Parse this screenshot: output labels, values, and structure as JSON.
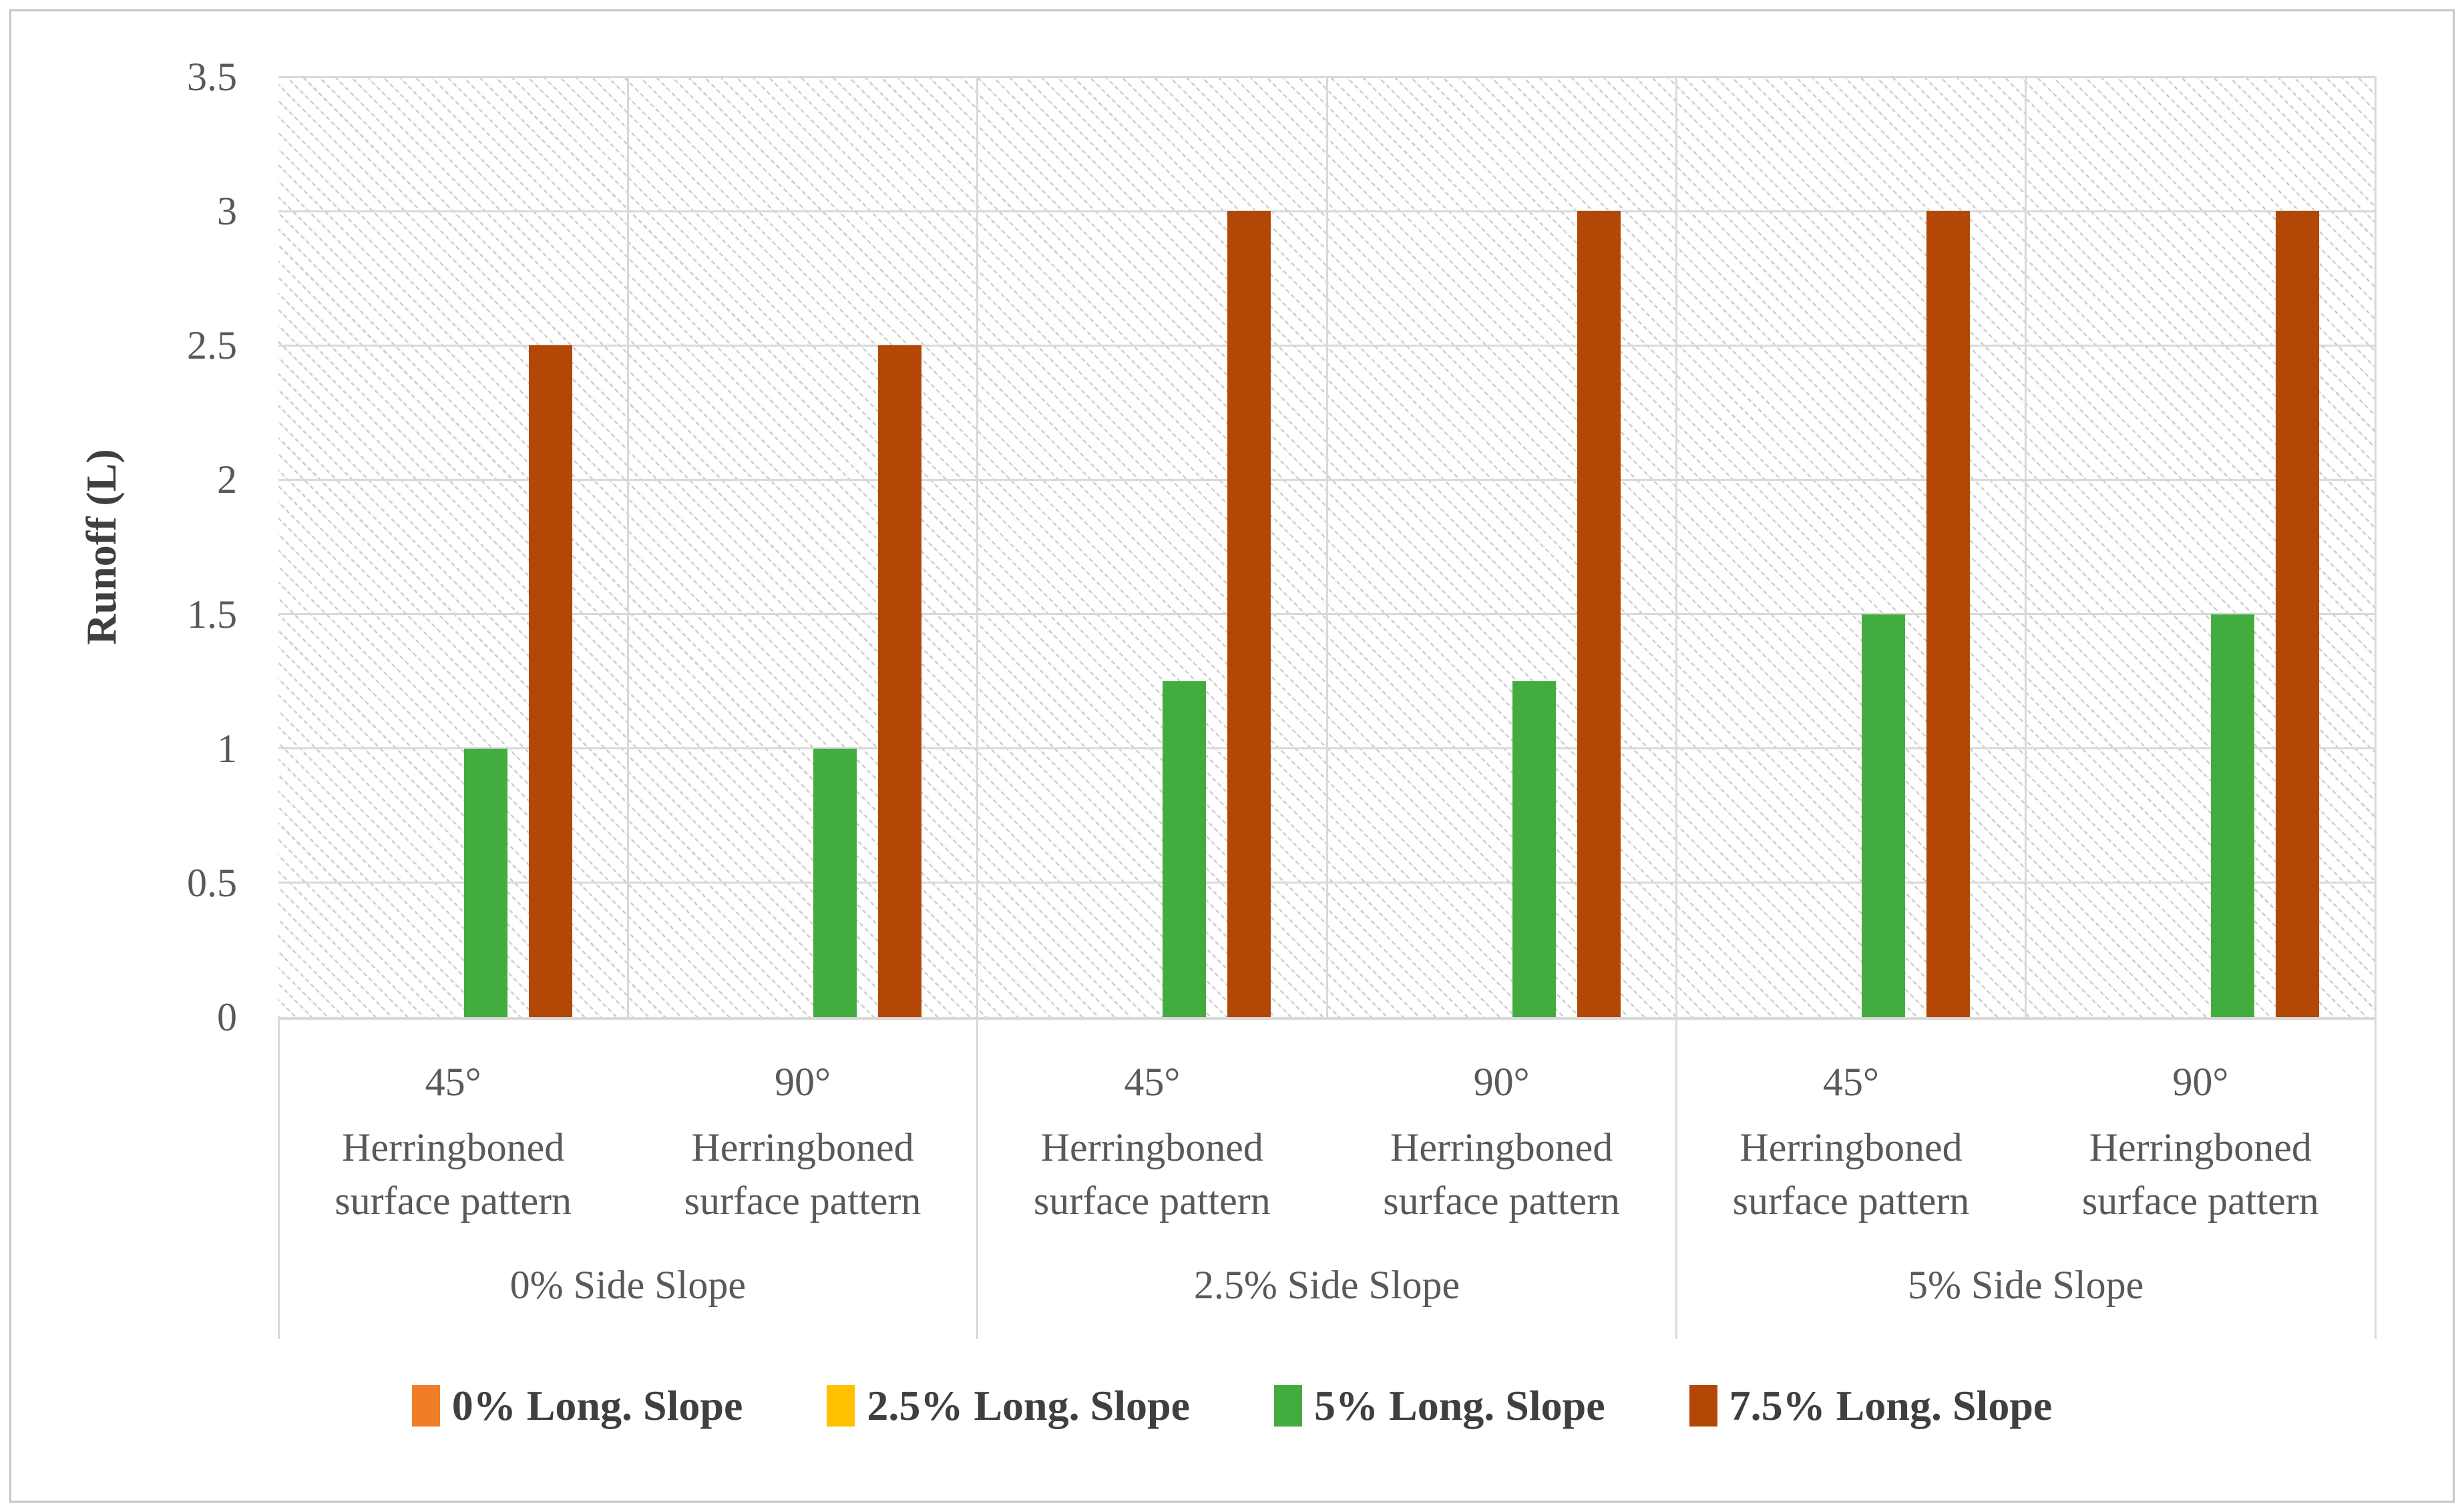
{
  "chart_data": {
    "type": "bar",
    "title": "",
    "ylabel": "Runoff (L)",
    "ylim": [
      0,
      3.5
    ],
    "ytick_step": 0.5,
    "yticks": [
      "3.5",
      "3",
      "2.5",
      "2",
      "1.5",
      "1",
      "0.5",
      "0"
    ],
    "grid": true,
    "legend_position": "bottom",
    "plot_background": "light gray diagonal downward hatch on white",
    "groups": [
      {
        "label": "0% Side Slope",
        "slots": [
          {
            "angle": "45°",
            "pattern_lines": [
              "Herringboned",
              "surface pattern"
            ]
          },
          {
            "angle": "90°",
            "pattern_lines": [
              "Herringboned",
              "surface pattern"
            ]
          }
        ]
      },
      {
        "label": "2.5% Side Slope",
        "slots": [
          {
            "angle": "45°",
            "pattern_lines": [
              "Herringboned",
              "surface pattern"
            ]
          },
          {
            "angle": "90°",
            "pattern_lines": [
              "Herringboned",
              "surface pattern"
            ]
          }
        ]
      },
      {
        "label": "5% Side Slope",
        "slots": [
          {
            "angle": "45°",
            "pattern_lines": [
              "Herringboned",
              "surface pattern"
            ]
          },
          {
            "angle": "90°",
            "pattern_lines": [
              "Herringboned",
              "surface pattern"
            ]
          }
        ]
      }
    ],
    "series": [
      {
        "name": "0% Long. Slope",
        "color": "#F07D28",
        "values": [
          0,
          0,
          0,
          0,
          0,
          0
        ]
      },
      {
        "name": "2.5% Long. Slope",
        "color": "#FFC000",
        "values": [
          0,
          0,
          0,
          0,
          0,
          0
        ]
      },
      {
        "name": "5% Long. Slope",
        "color": "#43AC3F",
        "values": [
          1,
          1,
          1.25,
          1.25,
          1.5,
          1.5
        ]
      },
      {
        "name": "7.5% Long. Slope",
        "color": "#B34706",
        "values": [
          2.5,
          2.5,
          3,
          3,
          3,
          3
        ]
      }
    ],
    "colors": {
      "gridline": "#D9D9D9",
      "axis_text": "#595959",
      "legend_text": "#3F3F3F",
      "figure_border": "#C6C6C6"
    }
  }
}
